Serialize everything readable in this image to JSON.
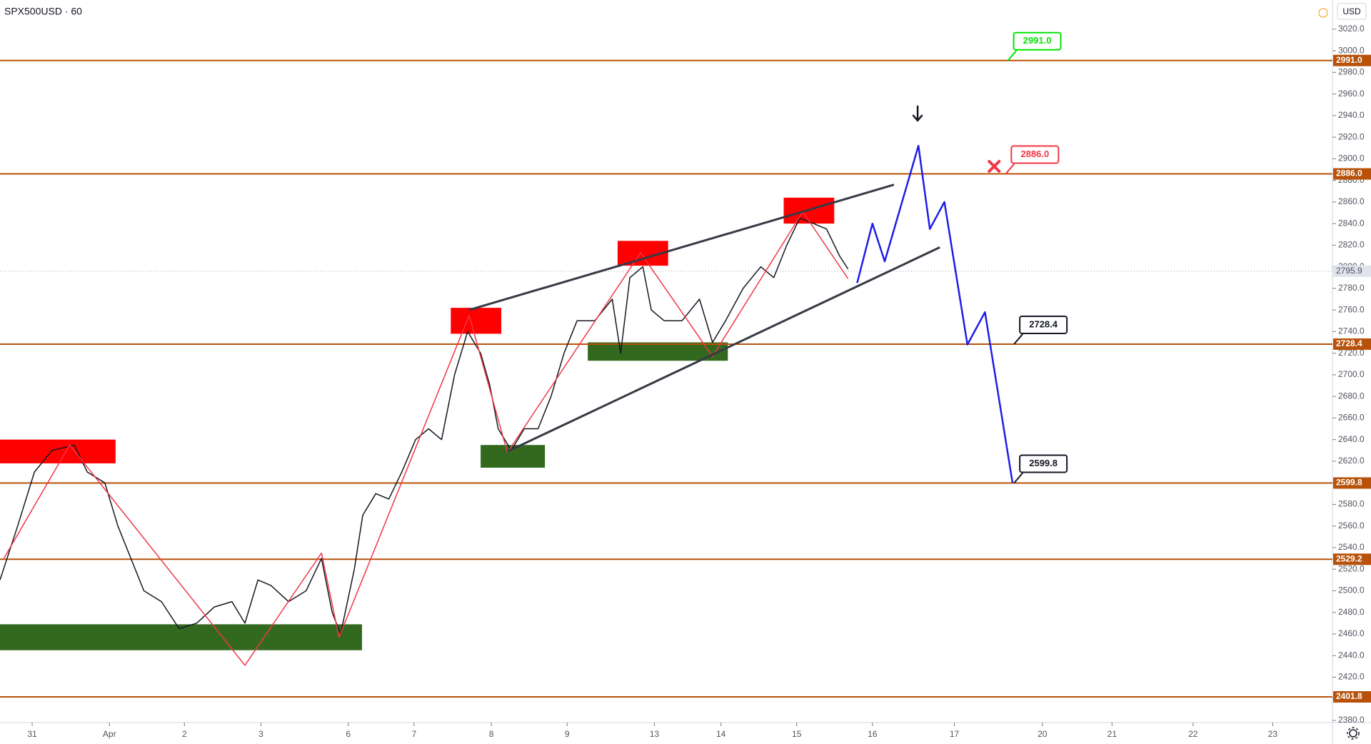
{
  "chart_data": {
    "type": "trading-chart",
    "title": "SPX500USD · 60",
    "currency": "USD",
    "xlim": [
      -0.42,
      16.99
    ],
    "ylim": [
      2378,
      3047
    ],
    "xticks": [
      {
        "value": 0,
        "label": "31"
      },
      {
        "value": 1.01,
        "label": "Apr"
      },
      {
        "value": 1.99,
        "label": "2"
      },
      {
        "value": 2.99,
        "label": "3"
      },
      {
        "value": 4.13,
        "label": "6"
      },
      {
        "value": 4.99,
        "label": "7"
      },
      {
        "value": 6.0,
        "label": "8"
      },
      {
        "value": 6.99,
        "label": "9"
      },
      {
        "value": 8.13,
        "label": "13"
      },
      {
        "value": 9.0,
        "label": "14"
      },
      {
        "value": 9.99,
        "label": "15"
      },
      {
        "value": 10.98,
        "label": "16"
      },
      {
        "value": 12.05,
        "label": "17"
      },
      {
        "value": 13.2,
        "label": "20"
      },
      {
        "value": 14.11,
        "label": "21"
      },
      {
        "value": 15.17,
        "label": "22"
      },
      {
        "value": 16.21,
        "label": "23"
      }
    ],
    "yticks": [
      {
        "value": 3020,
        "label": "3020.0"
      },
      {
        "value": 3000,
        "label": "3000.0"
      },
      {
        "value": 2980,
        "label": "2980.0"
      },
      {
        "value": 2960,
        "label": "2960.0"
      },
      {
        "value": 2940,
        "label": "2940.0"
      },
      {
        "value": 2920,
        "label": "2920.0"
      },
      {
        "value": 2900,
        "label": "2900.0"
      },
      {
        "value": 2880,
        "label": "2880.0"
      },
      {
        "value": 2860,
        "label": "2860.0"
      },
      {
        "value": 2840,
        "label": "2840.0"
      },
      {
        "value": 2820,
        "label": "2820.0"
      },
      {
        "value": 2800,
        "label": "2800.0"
      },
      {
        "value": 2780,
        "label": "2780.0"
      },
      {
        "value": 2760,
        "label": "2760.0"
      },
      {
        "value": 2740,
        "label": "2740.0"
      },
      {
        "value": 2720,
        "label": "2720.0"
      },
      {
        "value": 2700,
        "label": "2700.0"
      },
      {
        "value": 2680,
        "label": "2680.0"
      },
      {
        "value": 2660,
        "label": "2660.0"
      },
      {
        "value": 2640,
        "label": "2640.0"
      },
      {
        "value": 2620,
        "label": "2620.0"
      },
      {
        "value": 2600,
        "label": "2600.0"
      },
      {
        "value": 2580,
        "label": "2580.0"
      },
      {
        "value": 2560,
        "label": "2560.0"
      },
      {
        "value": 2540,
        "label": "2540.0"
      },
      {
        "value": 2520,
        "label": "2520.0"
      },
      {
        "value": 2500,
        "label": "2500.0"
      },
      {
        "value": 2480,
        "label": "2480.0"
      },
      {
        "value": 2460,
        "label": "2460.0"
      },
      {
        "value": 2440,
        "label": "2440.0"
      },
      {
        "value": 2420,
        "label": "2420.0"
      },
      {
        "value": 2400,
        "label": "2400.0"
      },
      {
        "value": 2380,
        "label": "2380.0"
      }
    ],
    "price": {
      "color": "#131722",
      "x": [
        -0.42,
        -0.19,
        0.03,
        0.26,
        0.55,
        0.72,
        0.95,
        1.12,
        1.29,
        1.46,
        1.69,
        1.92,
        2.15,
        2.38,
        2.61,
        2.78,
        2.95,
        3.12,
        3.35,
        3.58,
        3.78,
        3.92,
        4.03,
        4.21,
        4.32,
        4.49,
        4.66,
        4.83,
        5.01,
        5.18,
        5.35,
        5.52,
        5.69,
        5.86,
        5.98,
        6.09,
        6.26,
        6.43,
        6.61,
        6.78,
        6.95,
        7.12,
        7.35,
        7.58,
        7.69,
        7.81,
        7.98,
        8.09,
        8.26,
        8.49,
        8.72,
        8.89,
        9.06,
        9.29,
        9.52,
        9.69,
        9.86,
        10.03,
        10.21,
        10.38,
        10.55,
        10.66
      ],
      "values": [
        2510,
        2560,
        2610,
        2630,
        2635,
        2610,
        2600,
        2560,
        2530,
        2500,
        2490,
        2465,
        2470,
        2485,
        2490,
        2470,
        2510,
        2505,
        2490,
        2500,
        2530,
        2480,
        2460,
        2520,
        2570,
        2590,
        2585,
        2610,
        2640,
        2650,
        2640,
        2700,
        2740,
        2720,
        2690,
        2650,
        2630,
        2650,
        2650,
        2680,
        2720,
        2750,
        2750,
        2770,
        2720,
        2790,
        2800,
        2760,
        2750,
        2750,
        2770,
        2730,
        2750,
        2780,
        2800,
        2790,
        2820,
        2845,
        2840,
        2835,
        2810,
        2798
      ]
    },
    "current_price": 2795.9,
    "levels": {
      "color": "#b8520a",
      "values": [
        2991,
        2886,
        2728.4,
        2599.8,
        2529.2,
        2401.8
      ],
      "value_labels": [
        "2991.0",
        "2886.0",
        "2728.4",
        "2599.8",
        "2529.2",
        "2401.8"
      ]
    },
    "zones": [
      {
        "color": "#ff0000",
        "x": [
          -0.42,
          1.09
        ],
        "y": [
          2618,
          2640
        ]
      },
      {
        "color": "#33691e",
        "x": [
          -0.42,
          4.31
        ],
        "y": [
          2445,
          2469
        ]
      },
      {
        "color": "#ff0000",
        "x": [
          5.47,
          6.13
        ],
        "y": [
          2738,
          2762
        ]
      },
      {
        "color": "#33691e",
        "x": [
          5.86,
          6.7
        ],
        "y": [
          2614,
          2635
        ]
      },
      {
        "color": "#ff0000",
        "x": [
          7.65,
          8.31
        ],
        "y": [
          2801,
          2824
        ]
      },
      {
        "color": "#33691e",
        "x": [
          7.26,
          9.09
        ],
        "y": [
          2713,
          2730
        ]
      },
      {
        "color": "#ff0000",
        "x": [
          9.82,
          10.48
        ],
        "y": [
          2840,
          2864
        ]
      }
    ],
    "zigzag": {
      "color": "#f23645",
      "x": [
        -0.37,
        0.49,
        2.78,
        3.78,
        4.01,
        5.71,
        6.21,
        7.95,
        8.89,
        10.07,
        10.66
      ],
      "values": [
        2530,
        2635,
        2431,
        2535,
        2457,
        2755,
        2628,
        2813,
        2717,
        2851,
        2789
      ]
    },
    "channel": [
      {
        "color": "#363a45",
        "x": [
          5.71,
          11.26
        ],
        "values": [
          2760,
          2876
        ]
      },
      {
        "color": "#363a45",
        "x": [
          6.21,
          11.86
        ],
        "values": [
          2629,
          2818
        ]
      }
    ],
    "projection": {
      "color": "#1e1ee6",
      "x": [
        10.78,
        10.98,
        11.14,
        11.58,
        11.73,
        11.92,
        12.22,
        12.45,
        12.81
      ],
      "values": [
        2785,
        2840,
        2805,
        2912,
        2835,
        2860,
        2728,
        2758,
        2600
      ]
    },
    "callouts": [
      {
        "level": 0,
        "x": 12.75,
        "color": "#00e600"
      },
      {
        "level": 1,
        "x": 12.72,
        "color": "#f23645"
      },
      {
        "level": 2,
        "x": 12.83,
        "color": "#131722"
      },
      {
        "level": 3,
        "x": 12.83,
        "color": "#131722"
      }
    ],
    "markers": [
      {
        "symbol": "cross",
        "color": "#f23645",
        "x": 12.57,
        "y": 2893
      },
      {
        "symbol": "arrow",
        "color": "#131722",
        "x": 11.57,
        "y": 2942
      }
    ]
  }
}
